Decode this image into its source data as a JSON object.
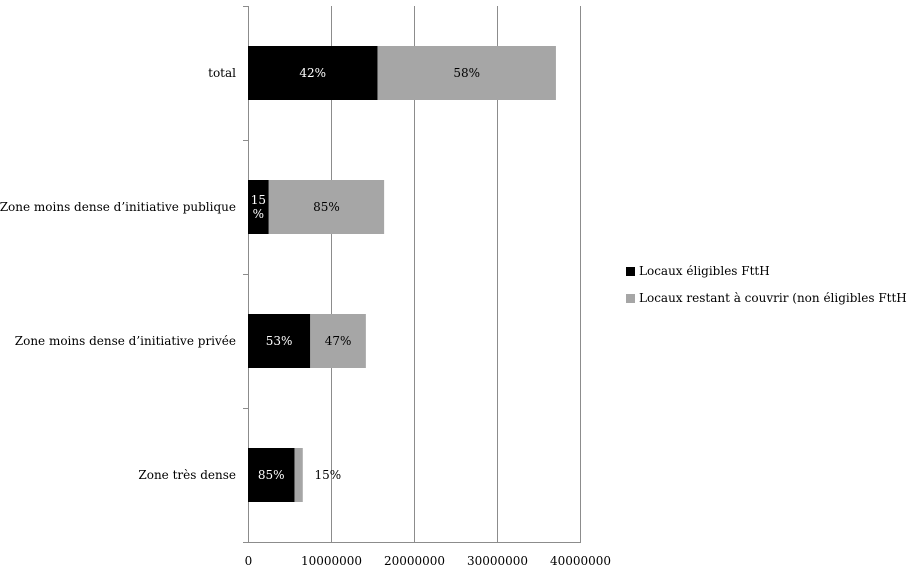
{
  "chart_data": {
    "type": "bar",
    "orientation": "horizontal",
    "stacked": true,
    "categories": [
      "total",
      "Zone moins dense d’initiative publique",
      "Zone moins dense d’initiative privée",
      "Zone très dense"
    ],
    "series": [
      {
        "name": "Locaux éligibles FttH",
        "color": "#000000",
        "values": [
          15600000,
          2500000,
          7500000,
          5600000
        ],
        "labels": [
          "42%",
          "15\n%",
          "53%",
          "85%"
        ]
      },
      {
        "name": "Locaux restant à couvrir (non éligibles FttH)",
        "color": "#a6a6a6",
        "values": [
          21500000,
          13900000,
          6700000,
          1000000
        ],
        "labels": [
          "58%",
          "85%",
          "47%",
          "15%"
        ]
      }
    ],
    "xlim": [
      0,
      40000000
    ],
    "xticks": [
      "0",
      "10000000",
      "20000000",
      "30000000",
      "40000000"
    ],
    "grid": "vertical",
    "legend": "right",
    "title": "",
    "xlabel": "",
    "ylabel": ""
  }
}
